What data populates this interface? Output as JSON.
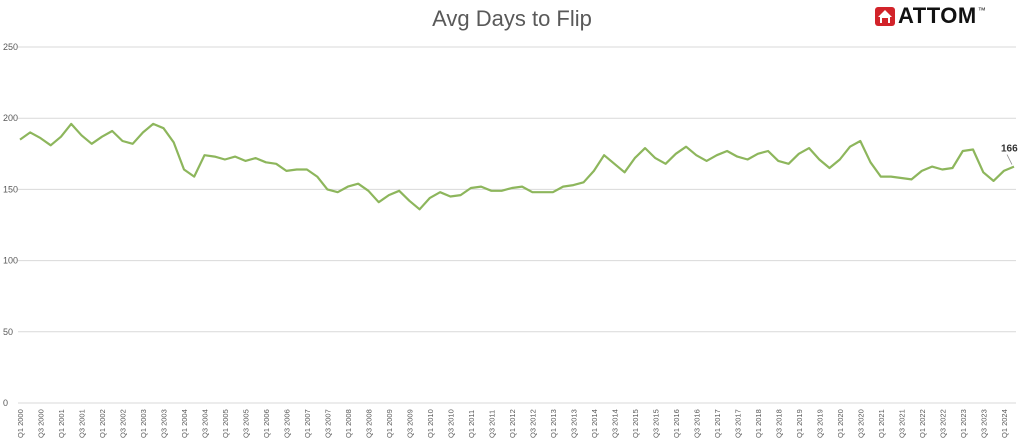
{
  "logo": {
    "text": "ATTOM",
    "tm": "™",
    "icon": "attom-house-icon",
    "color": "#d2232a"
  },
  "chart_data": {
    "type": "line",
    "title": "Avg Days to Flip",
    "ylim": [
      0,
      250
    ],
    "yticks": [
      0,
      50,
      100,
      150,
      200,
      250
    ],
    "grid": true,
    "legend": "none",
    "color": "#8db65c",
    "x": [
      "Q1 2000",
      "Q2 2000",
      "Q3 2000",
      "Q4 2000",
      "Q1 2001",
      "Q2 2001",
      "Q3 2001",
      "Q4 2001",
      "Q1 2002",
      "Q2 2002",
      "Q3 2002",
      "Q4 2002",
      "Q1 2003",
      "Q2 2003",
      "Q3 2003",
      "Q4 2003",
      "Q1 2004",
      "Q2 2004",
      "Q3 2004",
      "Q4 2004",
      "Q1 2005",
      "Q2 2005",
      "Q3 2005",
      "Q4 2005",
      "Q1 2006",
      "Q2 2006",
      "Q3 2006",
      "Q4 2006",
      "Q1 2007",
      "Q2 2007",
      "Q3 2007",
      "Q4 2007",
      "Q1 2008",
      "Q2 2008",
      "Q3 2008",
      "Q4 2008",
      "Q1 2009",
      "Q2 2009",
      "Q3 2009",
      "Q4 2009",
      "Q1 2010",
      "Q2 2010",
      "Q3 2010",
      "Q4 2010",
      "Q1 2011",
      "Q2 2011",
      "Q3 2011",
      "Q4 2011",
      "Q1 2012",
      "Q2 2012",
      "Q3 2012",
      "Q4 2012",
      "Q1 2013",
      "Q2 2013",
      "Q3 2013",
      "Q4 2013",
      "Q1 2014",
      "Q2 2014",
      "Q3 2014",
      "Q4 2014",
      "Q1 2015",
      "Q2 2015",
      "Q3 2015",
      "Q4 2015",
      "Q1 2016",
      "Q2 2016",
      "Q3 2016",
      "Q4 2016",
      "Q1 2017",
      "Q2 2017",
      "Q3 2017",
      "Q4 2017",
      "Q1 2018",
      "Q2 2018",
      "Q3 2018",
      "Q4 2018",
      "Q1 2019",
      "Q2 2019",
      "Q3 2019",
      "Q4 2019",
      "Q1 2020",
      "Q2 2020",
      "Q3 2020",
      "Q4 2020",
      "Q1 2021",
      "Q2 2021",
      "Q3 2021",
      "Q4 2021",
      "Q1 2022",
      "Q2 2022",
      "Q3 2022",
      "Q4 2022",
      "Q1 2023",
      "Q2 2023",
      "Q3 2023",
      "Q4 2023",
      "Q1 2024",
      "Q2 2024"
    ],
    "labeled_x": [
      "Q1 2000",
      "Q3 2000",
      "Q1 2001",
      "Q3 2001",
      "Q1 2002",
      "Q3 2002",
      "Q1 2003",
      "Q3 2003",
      "Q1 2004",
      "Q3 2004",
      "Q1 2005",
      "Q3 2005",
      "Q1 2006",
      "Q3 2006",
      "Q1 2007",
      "Q3 2007",
      "Q1 2008",
      "Q3 2008",
      "Q1 2009",
      "Q3 2009",
      "Q1 2010",
      "Q3 2010",
      "Q1 2011",
      "Q3 2011",
      "Q1 2012",
      "Q3 2012",
      "Q1 2013",
      "Q3 2013",
      "Q1 2014",
      "Q3 2014",
      "Q1 2015",
      "Q3 2015",
      "Q1 2016",
      "Q3 2016",
      "Q1 2017",
      "Q3 2017",
      "Q1 2018",
      "Q3 2018",
      "Q1 2019",
      "Q3 2019",
      "Q1 2020",
      "Q3 2020",
      "Q1 2021",
      "Q3 2021",
      "Q1 2022",
      "Q3 2022",
      "Q1 2023",
      "Q3 2023",
      "Q1 2024"
    ],
    "values": [
      185,
      190,
      186,
      181,
      187,
      196,
      188,
      182,
      187,
      191,
      184,
      182,
      190,
      196,
      193,
      183,
      164,
      159,
      174,
      173,
      171,
      173,
      170,
      172,
      169,
      168,
      163,
      164,
      164,
      159,
      150,
      148,
      152,
      154,
      149,
      141,
      146,
      149,
      142,
      136,
      144,
      148,
      145,
      146,
      151,
      152,
      149,
      149,
      151,
      152,
      148,
      148,
      148,
      152,
      153,
      155,
      163,
      174,
      168,
      162,
      172,
      179,
      172,
      168,
      175,
      180,
      174,
      170,
      174,
      177,
      173,
      171,
      175,
      177,
      170,
      168,
      175,
      179,
      171,
      165,
      171,
      180,
      184,
      169,
      159,
      159,
      158,
      157,
      163,
      166,
      164,
      165,
      177,
      178,
      162,
      156,
      163,
      166
    ],
    "data_labels": [
      {
        "index": 97,
        "text": "166"
      }
    ]
  }
}
